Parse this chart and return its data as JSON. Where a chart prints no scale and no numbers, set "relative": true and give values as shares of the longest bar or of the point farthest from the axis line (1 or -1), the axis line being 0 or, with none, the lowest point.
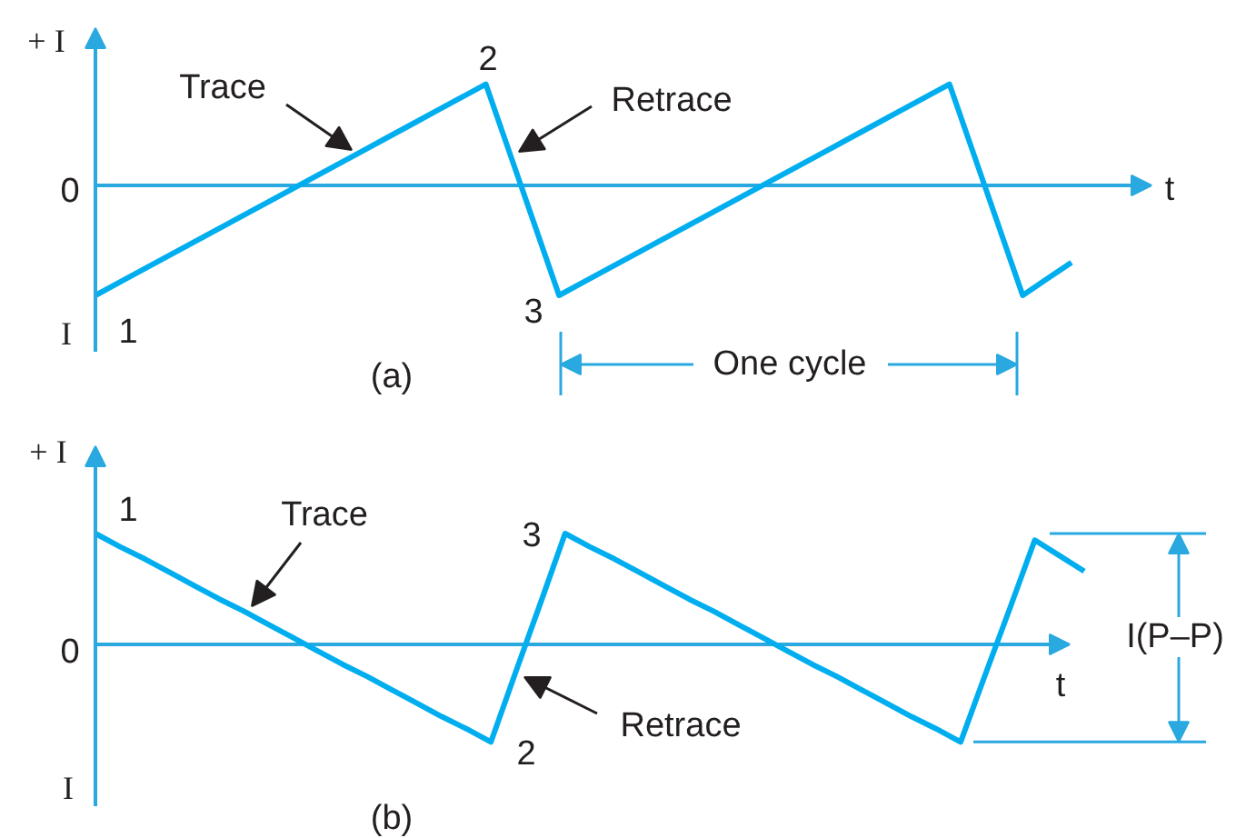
{
  "chart_data": [
    {
      "type": "line",
      "relative": true,
      "xlabel": "t",
      "categories": [
        null,
        null,
        null,
        null,
        null,
        null,
        null,
        null,
        null,
        null,
        null,
        null,
        null,
        null,
        null,
        null,
        null,
        null,
        null,
        null,
        null,
        null,
        null,
        null,
        null,
        null,
        null,
        null,
        null,
        null,
        null,
        null,
        null,
        null,
        null,
        null,
        null,
        null,
        null,
        null,
        null
      ],
      "series": [
        {
          "color": "#00aeef",
          "values": [
            -1,
            -0.88,
            -0.76,
            -0.64,
            -0.52,
            -0.4,
            -0.28,
            -0.16,
            -0.04,
            0.08,
            0.2,
            0.32,
            0.44,
            0.56,
            0.68,
            0.8,
            0.92,
            0.28,
            -0.36,
            -1,
            -0.88,
            -0.76,
            -0.64,
            -0.52,
            -0.4,
            -0.28,
            -0.16,
            -0.04,
            0.08,
            0.2,
            0.32,
            0.44,
            0.56,
            0.68,
            0.8,
            0.92,
            0.28,
            -0.36,
            -1,
            -0.85,
            -0.7
          ]
        }
      ],
      "ref_lines": [
        {
          "axis": "y",
          "value": 0,
          "color": "#29a9e0"
        }
      ],
      "annotations": [
        "+ I",
        "0",
        "I",
        "1",
        "2",
        "3",
        "Trace",
        "Retrace",
        "One cycle",
        "(a)"
      ]
    },
    {
      "type": "line",
      "relative": true,
      "xlabel": "t",
      "categories": [
        null,
        null,
        null,
        null,
        null,
        null,
        null,
        null,
        null,
        null,
        null,
        null,
        null,
        null,
        null,
        null,
        null,
        null,
        null,
        null,
        null,
        null,
        null,
        null,
        null,
        null,
        null,
        null,
        null,
        null,
        null,
        null,
        null,
        null,
        null,
        null,
        null,
        null,
        null,
        null,
        null
      ],
      "series": [
        {
          "color": "#00aeef",
          "values": [
            1,
            0.88,
            0.77,
            0.65,
            0.53,
            0.41,
            0.3,
            0.18,
            0.06,
            -0.06,
            -0.18,
            -0.29,
            -0.41,
            -0.53,
            -0.65,
            -0.76,
            -0.88,
            -0.25,
            0.37,
            1,
            0.88,
            0.77,
            0.65,
            0.53,
            0.41,
            0.3,
            0.18,
            0.06,
            -0.06,
            -0.18,
            -0.29,
            -0.41,
            -0.53,
            -0.65,
            -0.76,
            -0.88,
            -0.27,
            0.33,
            0.94,
            0.8,
            0.66
          ]
        }
      ],
      "ref_lines": [
        {
          "axis": "y",
          "value": 0,
          "color": "#29a9e0"
        }
      ],
      "annotations": [
        "+ I",
        "0",
        "I",
        "1",
        "Trace",
        "3",
        "2",
        "Retrace",
        "I(P–P)",
        "(b)"
      ]
    }
  ]
}
